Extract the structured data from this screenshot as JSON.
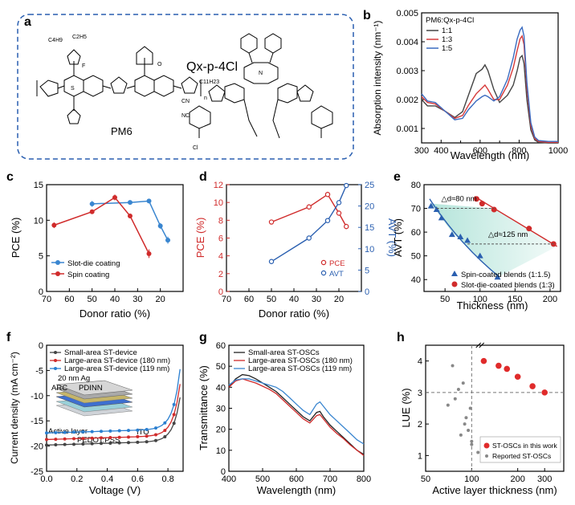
{
  "panel_labels": [
    "a",
    "b",
    "c",
    "d",
    "e",
    "f",
    "g",
    "h"
  ],
  "panel_a": {
    "donor_name": "PM6",
    "acceptor_name": "Qx-p-4Cl",
    "chem_labels": [
      "C4H9",
      "C2H5",
      "F",
      "S",
      "O",
      "C11H23",
      "CN",
      "NC",
      "N",
      "Cl",
      "n"
    ]
  },
  "chart_data": [
    {
      "panel": "b",
      "type": "line",
      "title": "",
      "xlabel": "Wavelength (nm)",
      "ylabel": "Absorption intensity (nm⁻¹)",
      "xlim": [
        300,
        1000
      ],
      "ylim": [
        0.0005,
        0.005
      ],
      "xticks": [
        300,
        400,
        500,
        600,
        700,
        800,
        900,
        1000
      ],
      "yticks": [
        0.001,
        0.002,
        0.003,
        0.004,
        0.005
      ],
      "ytick_labels": [
        "0.001",
        "0.002",
        "0.003",
        "0.004",
        "0.005"
      ],
      "legend_title": "PM6:Qx-p-4Cl",
      "series": [
        {
          "name": "1:1",
          "color": "#444444",
          "x": [
            300,
            330,
            370,
            420,
            470,
            510,
            540,
            580,
            610,
            625,
            640,
            670,
            700,
            740,
            770,
            790,
            805,
            815,
            825,
            840,
            860,
            880,
            900,
            950,
            1000
          ],
          "y": [
            0.002,
            0.00178,
            0.00178,
            0.0016,
            0.00138,
            0.00158,
            0.00215,
            0.0029,
            0.00305,
            0.0032,
            0.003,
            0.00235,
            0.0019,
            0.00215,
            0.0025,
            0.003,
            0.00345,
            0.00352,
            0.00325,
            0.002,
            0.00095,
            0.0006,
            0.00052,
            0.0005,
            0.0005
          ]
        },
        {
          "name": "1:3",
          "color": "#d63a3a",
          "x": [
            300,
            330,
            370,
            420,
            470,
            510,
            540,
            580,
            610,
            625,
            640,
            670,
            700,
            740,
            770,
            790,
            805,
            815,
            825,
            840,
            860,
            880,
            900,
            950,
            1000
          ],
          "y": [
            0.0021,
            0.0019,
            0.00185,
            0.0016,
            0.00135,
            0.00145,
            0.0018,
            0.0022,
            0.0024,
            0.0025,
            0.00235,
            0.002,
            0.002,
            0.0025,
            0.0031,
            0.0037,
            0.0041,
            0.0042,
            0.0039,
            0.0024,
            0.0011,
            0.00065,
            0.00055,
            0.00052,
            0.00052
          ]
        },
        {
          "name": "1:5",
          "color": "#3a6bc0",
          "x": [
            300,
            330,
            370,
            420,
            470,
            510,
            540,
            580,
            610,
            625,
            640,
            670,
            700,
            740,
            770,
            790,
            805,
            815,
            825,
            840,
            860,
            880,
            900,
            950,
            1000
          ],
          "y": [
            0.0022,
            0.00195,
            0.0019,
            0.0016,
            0.0013,
            0.00135,
            0.00165,
            0.00195,
            0.0021,
            0.00215,
            0.0021,
            0.00195,
            0.0021,
            0.0027,
            0.00345,
            0.0041,
            0.0044,
            0.0045,
            0.0042,
            0.0026,
            0.0012,
            0.0007,
            0.00058,
            0.00055,
            0.00055
          ]
        }
      ]
    },
    {
      "panel": "c",
      "type": "line",
      "xlabel": "Donor ratio (%)",
      "ylabel": "PCE (%)",
      "xlim": [
        70,
        10
      ],
      "ylim": [
        0,
        15
      ],
      "xticks": [
        70,
        60,
        50,
        40,
        30,
        20
      ],
      "yticks": [
        0,
        5,
        10,
        15
      ],
      "series": [
        {
          "name": "Slot-die coating",
          "color": "#3a86d0",
          "x": [
            50,
            33.3,
            25,
            20,
            16.7
          ],
          "y": [
            12.3,
            12.5,
            12.7,
            9.2,
            7.2
          ],
          "err": [
            0.4,
            0.2,
            0.3,
            0.4,
            0.5
          ]
        },
        {
          "name": "Spin coating",
          "color": "#d02b2b",
          "x": [
            66.7,
            50,
            40,
            33.3,
            25
          ],
          "y": [
            9.3,
            11.2,
            13.2,
            10.6,
            5.3
          ],
          "err": [
            0.4,
            0.3,
            0.4,
            0.3,
            0.6
          ]
        }
      ]
    },
    {
      "panel": "d",
      "type": "line",
      "xlabel": "Donor ratio (%)",
      "ylabel": "PCE (%)",
      "ylabel_right": "AVT (%)",
      "xlim": [
        70,
        10
      ],
      "ylim": [
        0,
        12
      ],
      "ylim_right": [
        0,
        25
      ],
      "xticks": [
        70,
        60,
        50,
        40,
        30,
        20
      ],
      "yticks": [
        0,
        2,
        4,
        6,
        8,
        10,
        12
      ],
      "yticks_right": [
        0,
        5,
        10,
        15,
        20,
        25
      ],
      "series": [
        {
          "name": "PCE",
          "color": "#d02b2b",
          "axis": "left",
          "x": [
            50,
            33.3,
            25,
            20,
            16.7
          ],
          "y": [
            7.8,
            9.5,
            10.9,
            8.8,
            7.3
          ],
          "err": [
            0.2,
            0.3,
            0.3,
            0.3,
            0.3
          ]
        },
        {
          "name": "AVT",
          "color": "#2a5fb0",
          "axis": "right",
          "x": [
            50,
            33.3,
            25,
            20,
            16.7
          ],
          "y": [
            7.0,
            12.5,
            16.6,
            20.8,
            24.8
          ],
          "err": [
            0,
            0,
            0,
            0,
            0
          ]
        }
      ]
    },
    {
      "panel": "e",
      "type": "scatter",
      "xlabel": "Thickness (nm)",
      "ylabel": "AVT (%)",
      "xlim": [
        20,
        215
      ],
      "ylim": [
        35,
        80
      ],
      "xticks": [
        50,
        100,
        150,
        200
      ],
      "yticks": [
        40,
        50,
        60,
        70,
        80
      ],
      "annotations": [
        "△d≈80 nm",
        "△d≈125 nm"
      ],
      "series": [
        {
          "name": "Spin-coated blends (1:1.5)",
          "color": "#2a5fb0",
          "marker": "triangle",
          "x": [
            30,
            38,
            45,
            60,
            72,
            82,
            100,
            125
          ],
          "y": [
            71,
            69.5,
            66,
            59,
            58,
            56.5,
            50,
            41
          ]
        },
        {
          "name": "Slot-die-coated blends (1:3)",
          "color": "#d02b2b",
          "marker": "circle",
          "x": [
            95,
            103,
            120,
            170,
            205
          ],
          "y": [
            74,
            72,
            69.5,
            61.5,
            55
          ]
        }
      ]
    },
    {
      "panel": "f",
      "type": "line",
      "xlabel": "Voltage (V)",
      "ylabel": "Current density (mA cm⁻²)",
      "xlim": [
        0,
        0.9
      ],
      "ylim": [
        -25,
        0
      ],
      "xticks": [
        0,
        0.2,
        0.4,
        0.6,
        0.8
      ],
      "xtick_labels": [
        "0.0",
        "0.2",
        "0.4",
        "0.6",
        "0.8"
      ],
      "yticks": [
        -25,
        -20,
        -15,
        -10,
        -5,
        0
      ],
      "inset_labels": [
        "20 nm Ag",
        "ARC",
        "PDINN",
        "Active layer",
        "PEDOT:PSS",
        "ITO"
      ],
      "series": [
        {
          "name": "Small-area ST-device",
          "color": "#444444",
          "jsc": -19.8,
          "voc": 0.87
        },
        {
          "name": "Large-area ST-device (180 nm)",
          "color": "#d02b2b",
          "jsc": -18.7,
          "voc": 0.86
        },
        {
          "name": "Large-area ST-device (119 nm)",
          "color": "#2a7fd0",
          "jsc": -17.4,
          "voc": 0.85
        }
      ]
    },
    {
      "panel": "g",
      "type": "line",
      "xlabel": "Wavelength (nm)",
      "ylabel": "Transmittance (%)",
      "xlim": [
        400,
        800
      ],
      "ylim": [
        0,
        60
      ],
      "xticks": [
        400,
        500,
        600,
        700,
        800
      ],
      "yticks": [
        0,
        10,
        20,
        30,
        40,
        50,
        60
      ],
      "series": [
        {
          "name": "Small-area ST-OSCs",
          "color": "#222222",
          "x": [
            400,
            420,
            440,
            460,
            480,
            500,
            520,
            540,
            560,
            580,
            600,
            620,
            640,
            660,
            670,
            680,
            700,
            720,
            740,
            760,
            780,
            800
          ],
          "y": [
            40,
            44,
            46,
            45.5,
            44,
            42,
            40,
            38,
            35,
            32,
            29,
            26,
            24,
            28,
            28.5,
            26,
            22,
            19,
            16,
            13,
            10,
            8
          ]
        },
        {
          "name": "Large-area ST-OSCs (180 nm)",
          "color": "#d02b2b",
          "x": [
            400,
            420,
            440,
            460,
            480,
            500,
            520,
            540,
            560,
            580,
            600,
            620,
            640,
            660,
            670,
            680,
            700,
            720,
            740,
            760,
            780,
            800
          ],
          "y": [
            40,
            43,
            44,
            43,
            42,
            40.5,
            39,
            37,
            34,
            31,
            28,
            25,
            23,
            26.5,
            27,
            25,
            21,
            18,
            15.5,
            12.5,
            10,
            7.5
          ]
        },
        {
          "name": "Large-area ST-OSCs (119 nm)",
          "color": "#3a86d0",
          "x": [
            400,
            420,
            440,
            460,
            480,
            500,
            520,
            540,
            560,
            580,
            600,
            620,
            640,
            660,
            670,
            680,
            700,
            720,
            740,
            760,
            780,
            800
          ],
          "y": [
            41,
            43.5,
            44,
            44,
            43,
            42,
            41,
            40,
            38,
            35,
            32,
            29,
            27,
            32,
            33,
            31,
            27,
            24,
            21,
            18,
            15,
            13
          ]
        }
      ]
    },
    {
      "panel": "h",
      "type": "scatter",
      "xlabel": "Active layer thickness (nm)",
      "ylabel": "LUE (%)",
      "xscale": "log",
      "xlim": [
        50,
        400
      ],
      "ylim": [
        0.5,
        4.5
      ],
      "xticks": [
        50,
        100,
        200,
        300
      ],
      "yticks": [
        1,
        2,
        3,
        4
      ],
      "series": [
        {
          "name": "ST-OSCs in this work",
          "color": "#e02b2b",
          "x": [
            120,
            150,
            170,
            200,
            250,
            300
          ],
          "y": [
            4.0,
            3.85,
            3.75,
            3.5,
            3.2,
            3.0
          ]
        },
        {
          "name": "Reported ST-OSCs",
          "color": "#888888",
          "x": [
            70,
            75,
            78,
            82,
            85,
            88,
            90,
            92,
            95,
            98,
            100,
            100,
            110
          ],
          "y": [
            2.6,
            3.85,
            2.8,
            3.1,
            1.65,
            3.3,
            2.0,
            2.2,
            1.8,
            2.5,
            1.35,
            1.45,
            1.1
          ]
        }
      ]
    }
  ]
}
